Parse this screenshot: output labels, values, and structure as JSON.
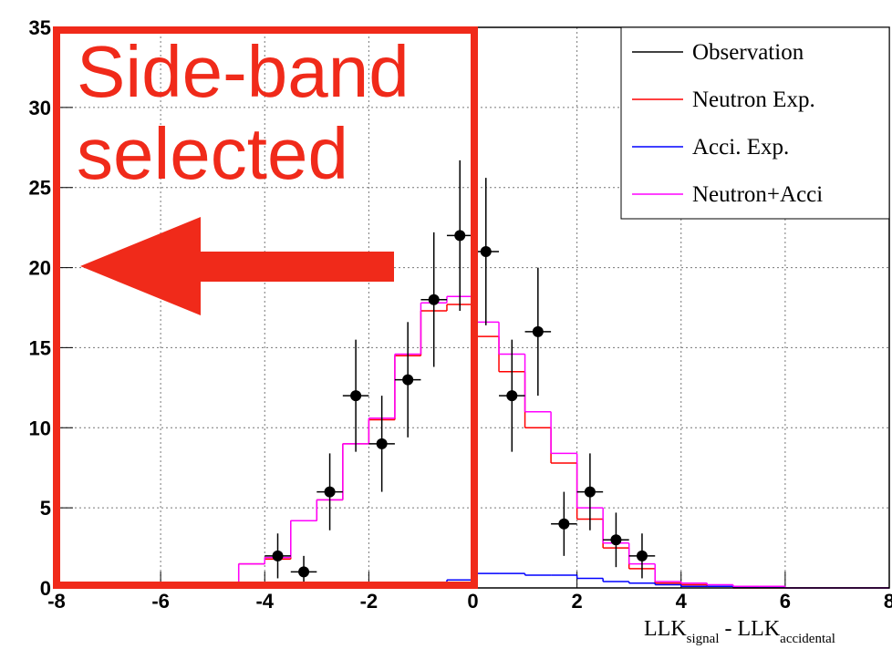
{
  "chart_data": {
    "type": "histogram",
    "bins": [
      -8,
      -7.5,
      -7,
      -6.5,
      -6,
      -5.5,
      -5,
      -4.5,
      -4,
      -3.5,
      -3,
      -2.5,
      -2,
      -1.5,
      -1,
      -0.5,
      0,
      0.5,
      1,
      1.5,
      2,
      2.5,
      3,
      3.5,
      4,
      4.5,
      5,
      5.5,
      6,
      6.5,
      7,
      7.5,
      8
    ],
    "series": [
      {
        "name": "Neutron Exp.",
        "color": "#ff0000",
        "values": [
          0,
          0,
          0,
          0,
          0,
          0,
          0,
          1.5,
          1.8,
          4.2,
          5.5,
          9,
          10.5,
          14.5,
          17.3,
          17.7,
          15.7,
          13.5,
          10,
          7.8,
          4.3,
          2.5,
          1.2,
          0.3,
          0.2,
          0.1,
          0,
          0,
          0,
          0,
          0,
          0
        ]
      },
      {
        "name": "Acci. Exp.",
        "color": "#0000ff",
        "values": [
          0,
          0,
          0,
          0,
          0,
          0,
          0,
          0,
          0,
          0,
          0,
          0,
          0,
          0,
          0.2,
          0.5,
          0.9,
          0.9,
          0.8,
          0.8,
          0.6,
          0.4,
          0.3,
          0.2,
          0.1,
          0.1,
          0.05,
          0.05,
          0,
          0,
          0,
          0
        ]
      },
      {
        "name": "Neutron+Acci",
        "color": "#ff00ff",
        "values": [
          0,
          0,
          0,
          0,
          0,
          0,
          0,
          1.5,
          1.9,
          4.2,
          5.5,
          9,
          10.6,
          14.6,
          17.8,
          18.2,
          16.6,
          14.6,
          11,
          8.4,
          5,
          2.8,
          1.5,
          0.4,
          0.3,
          0.2,
          0.1,
          0.1,
          0,
          0,
          0,
          0
        ]
      }
    ],
    "observation": {
      "name": "Observation",
      "color": "#000000",
      "x": [
        -3.75,
        -3.25,
        -2.75,
        -2.25,
        -1.75,
        -1.25,
        -0.75,
        -0.25,
        0.25,
        0.75,
        1.25,
        1.75,
        2.25,
        2.75,
        3.25
      ],
      "values": [
        2,
        1,
        6,
        12,
        9,
        13,
        18,
        22,
        21,
        12,
        16,
        4,
        6,
        3,
        2
      ],
      "errors": [
        1.4,
        1,
        2.4,
        3.5,
        3,
        3.6,
        4.2,
        4.7,
        4.6,
        3.5,
        4,
        2,
        2.4,
        1.7,
        1.4
      ]
    },
    "xlim": [
      -8,
      8
    ],
    "xticks": [
      -8,
      -6,
      -4,
      -2,
      0,
      2,
      4,
      6,
      8
    ],
    "ylim": [
      0,
      35
    ],
    "yticks": [
      0,
      5,
      10,
      15,
      20,
      25,
      30,
      35
    ],
    "grid": true,
    "legend": "upper right",
    "x_label": {
      "part1": "LLK",
      "sub1": "signal",
      "sep": " - ",
      "part2": "LLK",
      "sub2": "accidental"
    },
    "annotation": [
      "Side-band",
      "selected"
    ]
  }
}
